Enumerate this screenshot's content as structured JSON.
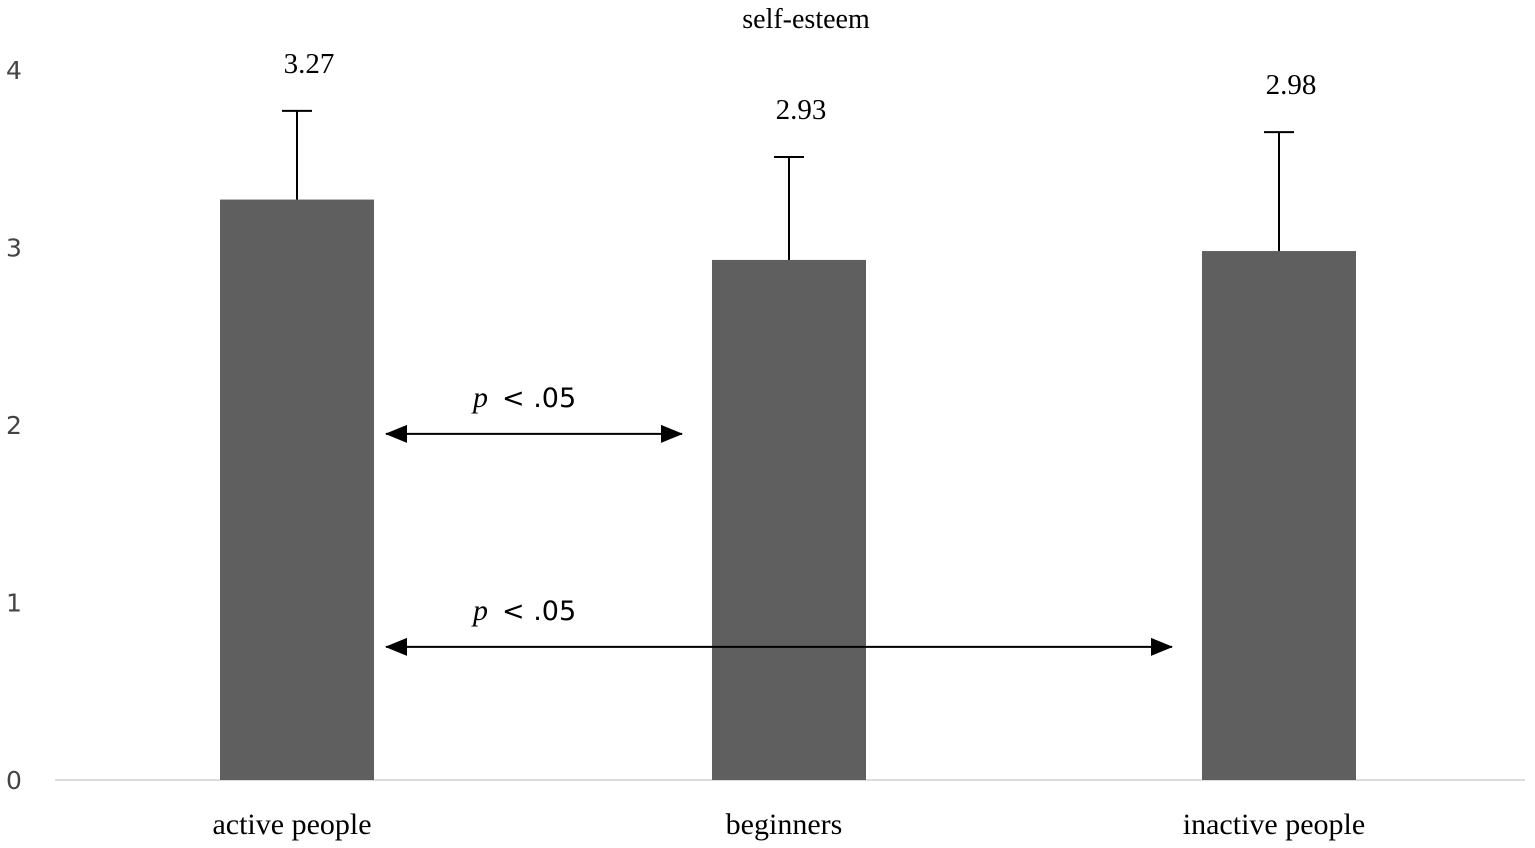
{
  "chart_data": {
    "type": "bar",
    "title": "self-esteem",
    "categories": [
      "active people",
      "beginners",
      "inactive people"
    ],
    "values": [
      3.27,
      2.93,
      2.98
    ],
    "errors": [
      0.5,
      0.58,
      0.67
    ],
    "value_labels": [
      "3.27",
      "2.93",
      "2.98"
    ],
    "ylim": [
      0,
      4
    ],
    "yticks": [
      "0",
      "1",
      "2",
      "3",
      "4"
    ],
    "bar_color": "#5f5f5f",
    "annotations": [
      {
        "text_p": "p",
        "text_rest": "< .05",
        "from": "active people",
        "to": "beginners",
        "y": 1.95
      },
      {
        "text_p": "p",
        "text_rest": "< .05",
        "from": "active people",
        "to": "inactive people",
        "y": 0.75
      }
    ]
  }
}
